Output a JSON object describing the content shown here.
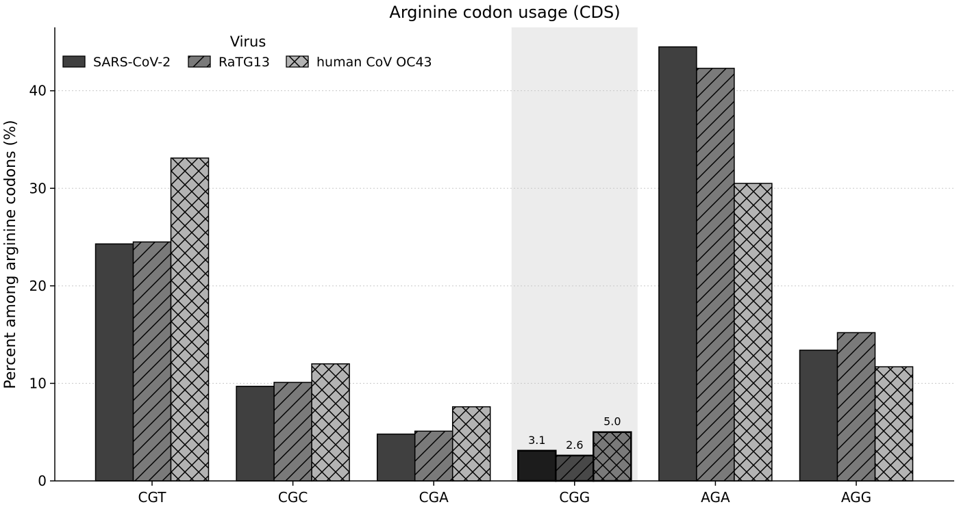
{
  "chart_data": {
    "type": "bar",
    "title": "Arginine codon usage (CDS)",
    "xlabel": "",
    "ylabel": "Percent among arginine codons (%)",
    "categories": [
      "CGT",
      "CGC",
      "CGA",
      "CGG",
      "AGA",
      "AGG"
    ],
    "ylim": [
      0,
      46.5
    ],
    "yticks": [
      0,
      10,
      20,
      30,
      40
    ],
    "grid": "horizontal dotted",
    "legend": {
      "title": "Virus",
      "placement": "top-left"
    },
    "highlight": {
      "category": "CGG",
      "color": "#ececec"
    },
    "series": [
      {
        "name": "SARS-CoV-2",
        "color": "#404040",
        "hatch": "none",
        "highlight_color": "#1c1c1c",
        "values": [
          24.3,
          9.7,
          4.8,
          3.1,
          44.5,
          13.4
        ]
      },
      {
        "name": "RaTG13",
        "color": "#7a7a7a",
        "hatch": "diagonal",
        "highlight_color": "#484848",
        "values": [
          24.5,
          10.1,
          5.1,
          2.6,
          42.3,
          15.2
        ]
      },
      {
        "name": "human CoV OC43",
        "color": "#b3b3b3",
        "hatch": "crosshatch",
        "highlight_color": "#7a7a7a",
        "values": [
          33.1,
          12.0,
          7.6,
          5.0,
          30.5,
          11.7
        ]
      }
    ],
    "annotations": [
      {
        "category": "CGG",
        "series": "SARS-CoV-2",
        "text": "3.1"
      },
      {
        "category": "CGG",
        "series": "RaTG13",
        "text": "2.6"
      },
      {
        "category": "CGG",
        "series": "human CoV OC43",
        "text": "5.0"
      }
    ]
  }
}
